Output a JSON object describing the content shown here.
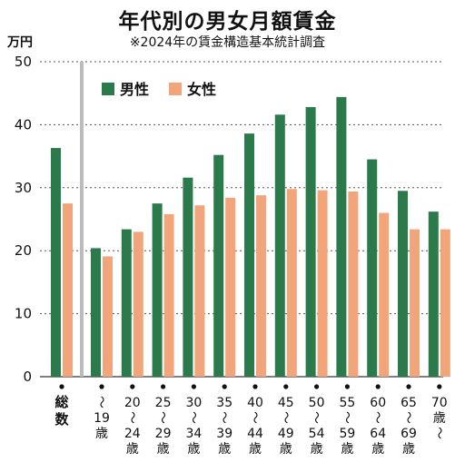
{
  "title": "年代別の男女月額賃金",
  "subtitle": "※2024年の賃金構造基本統計調査",
  "unit_label": "万円",
  "colors": {
    "male": "#2a7a4b",
    "female": "#f2a57a",
    "grid": "#555555",
    "separator": "#bbbbbb"
  },
  "chart_data": {
    "type": "bar",
    "ylabel": "万円",
    "ylim": [
      0,
      50
    ],
    "yticks": [
      "0",
      "10",
      "20",
      "30",
      "40",
      "50"
    ],
    "legend": {
      "position": "top-left",
      "entries": [
        "男性",
        "女性"
      ]
    },
    "categories": [
      [
        "総",
        "数"
      ],
      [
        "〜",
        "19",
        "歳"
      ],
      [
        "20",
        "〜",
        "24",
        "歳"
      ],
      [
        "25",
        "〜",
        "29",
        "歳"
      ],
      [
        "30",
        "〜",
        "34",
        "歳"
      ],
      [
        "35",
        "〜",
        "39",
        "歳"
      ],
      [
        "40",
        "〜",
        "44",
        "歳"
      ],
      [
        "45",
        "〜",
        "49",
        "歳"
      ],
      [
        "50",
        "〜",
        "54",
        "歳"
      ],
      [
        "55",
        "〜",
        "59",
        "歳"
      ],
      [
        "60",
        "〜",
        "64",
        "歳"
      ],
      [
        "65",
        "〜",
        "69",
        "歳"
      ],
      [
        "70",
        "歳",
        "〜"
      ]
    ],
    "series": [
      {
        "name": "男性",
        "values": [
          36.3,
          20.4,
          23.4,
          27.5,
          31.6,
          35.2,
          38.6,
          41.6,
          42.8,
          44.4,
          34.5,
          29.5,
          26.2
        ]
      },
      {
        "name": "女性",
        "values": [
          27.5,
          19.1,
          23.0,
          25.8,
          27.2,
          28.4,
          28.8,
          29.8,
          29.6,
          29.4,
          26.0,
          23.4,
          23.4
        ]
      }
    ]
  }
}
